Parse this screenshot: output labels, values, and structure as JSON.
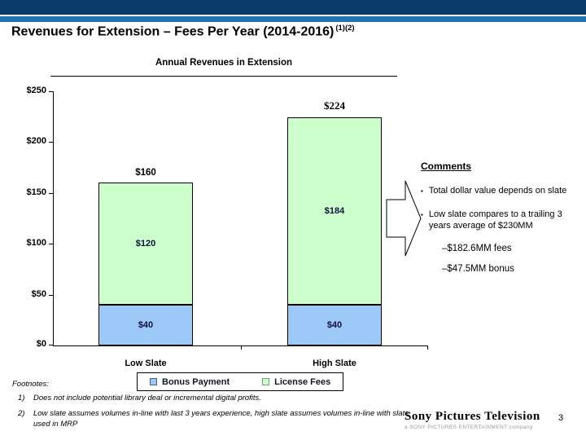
{
  "slide": {
    "title": "Revenues for Extension – Fees Per Year (2014-2016)",
    "title_superscript": "(1)(2)",
    "page_number": "3"
  },
  "chart_data": {
    "type": "bar",
    "stacked": true,
    "title": "Annual Revenues in Extension",
    "categories": [
      "Low Slate",
      "High Slate"
    ],
    "series": [
      {
        "name": "Bonus Payment",
        "color": "#9cc9f7",
        "values": [
          40,
          40
        ]
      },
      {
        "name": "License Fees",
        "color": "#ccffcc",
        "values": [
          120,
          184
        ]
      }
    ],
    "totals": [
      160,
      224
    ],
    "ylim": [
      0,
      250
    ],
    "y_ticks": [
      0,
      50,
      100,
      150,
      200,
      250
    ],
    "y_tick_labels": [
      "$0",
      "$50",
      "$100",
      "$150",
      "$200",
      "$250"
    ],
    "grid": false,
    "legend_position": "bottom",
    "labels": {
      "low_bonus": "$40",
      "low_license": "$120",
      "low_total": "$160",
      "high_bonus": "$40",
      "high_license": "$184",
      "high_total": "$224"
    }
  },
  "comments": {
    "heading": "Comments",
    "bullets": [
      "Total dollar value depends on slate",
      "Low slate compares to a trailing 3 years average of $230MM"
    ],
    "sub_items": [
      "–$182.6MM fees",
      "–$47.5MM bonus"
    ]
  },
  "footnotes": {
    "label": "Footnotes:",
    "items": [
      {
        "num": "1)",
        "text": "Does not include potential library deal or incremental digital profits."
      },
      {
        "num": "2)",
        "text": "Low slate assumes volumes in-line with last 3 years experience, high slate assumes volumes in-line with slate used in MRP"
      }
    ]
  },
  "logo": {
    "name": "Sony Pictures Television",
    "subtext": "a SONY PICTURES ENTERTAINMENT company"
  },
  "colors": {
    "banner_navy": "#0a3a67",
    "banner_blue": "#2173b4",
    "bar_blue": "#9cc9f7",
    "bar_green": "#ccffcc"
  }
}
